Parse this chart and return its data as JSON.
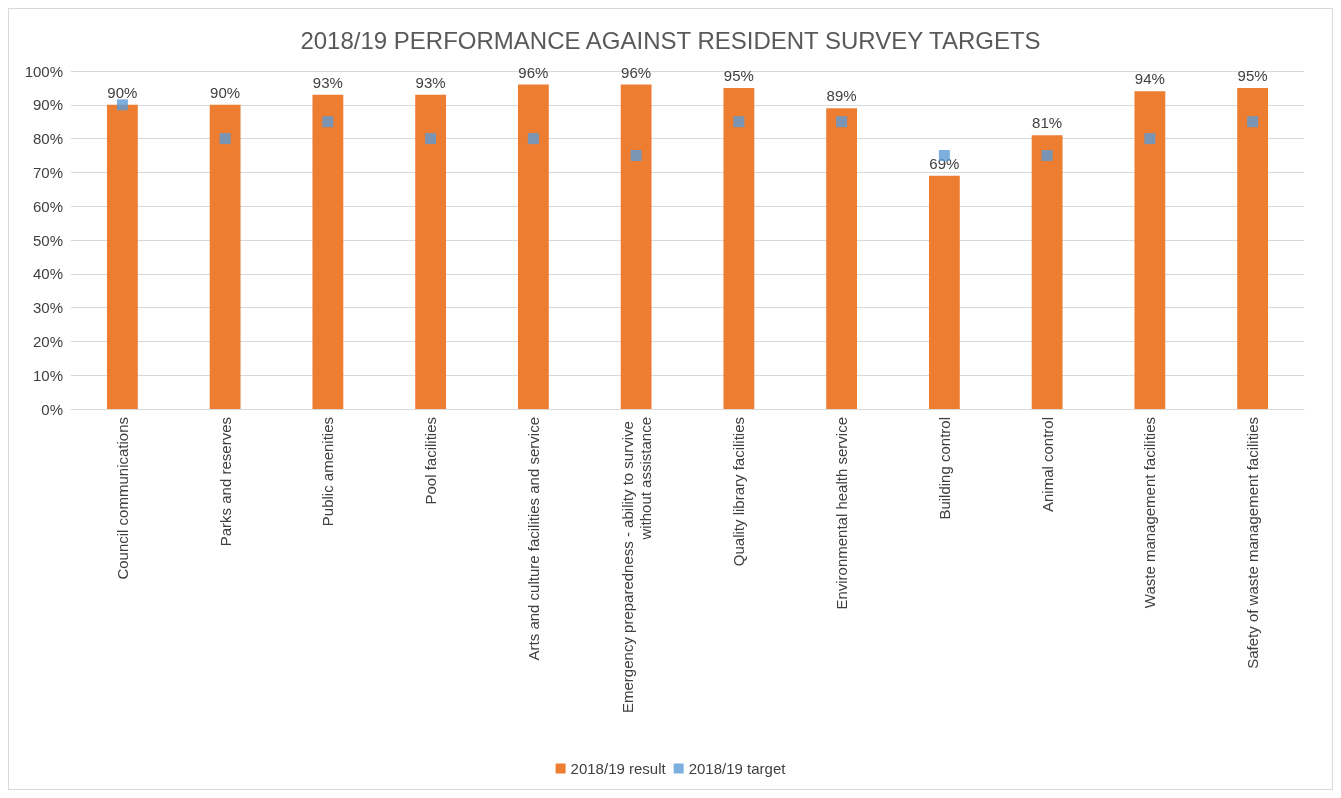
{
  "chart_data": {
    "type": "bar",
    "title": "2018/19 PERFORMANCE AGAINST RESIDENT SURVEY TARGETS",
    "categories": [
      "Council communications",
      "Parks and reserves",
      "Public amenities",
      "Pool facilities",
      "Arts and culture facilities and service",
      "Emergency preparedness - ability to survive without assistance",
      "Quality library facilities",
      "Environmental health service",
      "Building control",
      "Animal control",
      "Waste management facilities",
      "Safety of waste management facilities"
    ],
    "series": [
      {
        "name": "2018/19 result",
        "color": "#ed7d31",
        "values": [
          90,
          90,
          93,
          93,
          96,
          96,
          95,
          89,
          69,
          81,
          94,
          95
        ],
        "value_labels": [
          "90%",
          "90%",
          "93%",
          "93%",
          "96%",
          "96%",
          "95%",
          "89%",
          "69%",
          "81%",
          "94%",
          "95%"
        ]
      },
      {
        "name": "2018/19 target",
        "type": "scatter",
        "marker": "square",
        "color": "#5b9bd5",
        "values": [
          90,
          80,
          85,
          80,
          80,
          75,
          85,
          85,
          75,
          75,
          80,
          85
        ]
      }
    ],
    "ylim": [
      0,
      100
    ],
    "yticks": [
      {
        "value": 0,
        "label": "0%"
      },
      {
        "value": 10,
        "label": "10%"
      },
      {
        "value": 20,
        "label": "20%"
      },
      {
        "value": 30,
        "label": "30%"
      },
      {
        "value": 40,
        "label": "40%"
      },
      {
        "value": 50,
        "label": "50%"
      },
      {
        "value": 60,
        "label": "60%"
      },
      {
        "value": 70,
        "label": "70%"
      },
      {
        "value": 80,
        "label": "80%"
      },
      {
        "value": 90,
        "label": "90%"
      },
      {
        "value": 100,
        "label": "100%"
      }
    ],
    "grid": "y",
    "legend": "bottom"
  }
}
